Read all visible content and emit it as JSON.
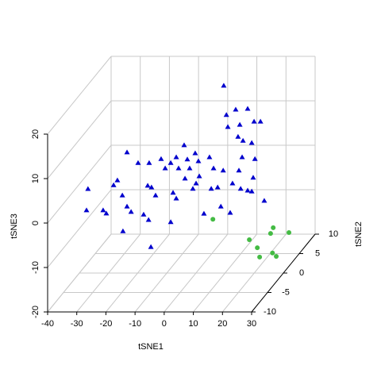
{
  "chart_data": {
    "type": "scatter3d",
    "xlabel": "tSNE1",
    "ylabel": "tSNE2",
    "zlabel": "tSNE3",
    "xlim": [
      -40,
      30
    ],
    "ylim": [
      -10,
      10
    ],
    "zlim": [
      -20,
      20
    ],
    "xticks": [
      -40,
      -30,
      -20,
      -10,
      0,
      10,
      20,
      30
    ],
    "yticks": [
      -10,
      -5,
      0,
      5,
      10
    ],
    "zticks": [
      -20,
      -10,
      0,
      10,
      20
    ],
    "grid": true,
    "series": [
      {
        "color": "#0000cd",
        "marker": "triangle",
        "x": [
          4.1,
          8.2,
          5.0,
          12.3,
          14.5,
          16.7,
          9.6,
          5.5,
          13.7,
          9.0,
          10.7,
          -29.1,
          -25.3,
          -21.5,
          -17.4,
          -14.1,
          -9.5,
          -5.7,
          -4.6,
          -0.8,
          -8.4,
          -12.2,
          -16.0,
          -11.4,
          -7.6,
          10.4,
          14.8,
          -32.4,
          -33.7,
          -22.0,
          -20.7,
          0.6,
          3.9,
          9.3,
          14.2,
          -4.3,
          -9.2,
          -5.4,
          2.0,
          -0.2,
          7.1,
          9.9,
          12.3,
          -31.6,
          -32.1,
          -26.4,
          -25.3,
          -19.6,
          -30.7,
          -19.3,
          -13.3,
          -12.2,
          -6.5,
          -27.7,
          -29.1,
          -23.4,
          -21.7,
          -14.1,
          -2.7,
          6.3,
          3.1,
          18.0,
          -20.9,
          13.7
        ],
        "y": [
          5,
          5,
          5,
          5,
          5,
          5,
          5,
          5,
          5,
          5,
          5,
          5,
          5,
          5,
          5,
          5,
          5,
          5,
          5,
          5,
          5,
          5,
          5,
          5,
          5,
          5,
          5,
          5,
          5,
          5,
          5,
          5,
          5,
          5,
          5,
          5,
          5,
          5,
          5,
          5,
          5,
          5,
          5,
          -5,
          -5,
          -5,
          -5,
          -5,
          5,
          5,
          5,
          5,
          5,
          5,
          5,
          5,
          5,
          5,
          5,
          5,
          5,
          5,
          5,
          5
        ],
        "z": [
          17.8,
          12.4,
          11.2,
          12.6,
          9.7,
          9.7,
          9.0,
          8.5,
          4.9,
          6.3,
          5.4,
          2.8,
          0.4,
          0.4,
          1.3,
          0.4,
          4.4,
          2.6,
          0.8,
          1.7,
          1.2,
          1.7,
          -0.8,
          -0.8,
          -0.8,
          1.7,
          1.3,
          -3.5,
          -4.6,
          -4.7,
          -5.1,
          -0.8,
          -1.3,
          -1.3,
          -2.9,
          -2.6,
          -3.1,
          -4.2,
          -5.1,
          -5.4,
          -4.2,
          -5.4,
          -5.8,
          3.3,
          -1.5,
          -1.5,
          -2.2,
          -6.2,
          -6.9,
          -6.9,
          -6.3,
          -7.6,
          -5.4,
          -10.6,
          -9.4,
          -11.2,
          -12.4,
          -12.9,
          -11.0,
          -10.8,
          -9.4,
          -8.1,
          -18.5,
          -6.0
        ]
      },
      {
        "color": "#44bb44",
        "marker": "circle",
        "x": [
          -2.9,
          17.8,
          23.2,
          16.9,
          9.6,
          16.7,
          21.9,
          23.2,
          17.5
        ],
        "y": [
          8,
          8,
          8,
          8,
          8,
          4,
          4,
          4,
          4
        ],
        "z": [
          -14.9,
          -16.8,
          -17.9,
          -18.1,
          -19.5,
          -17.8,
          -19.0,
          -19.75,
          -19.9
        ]
      }
    ]
  }
}
